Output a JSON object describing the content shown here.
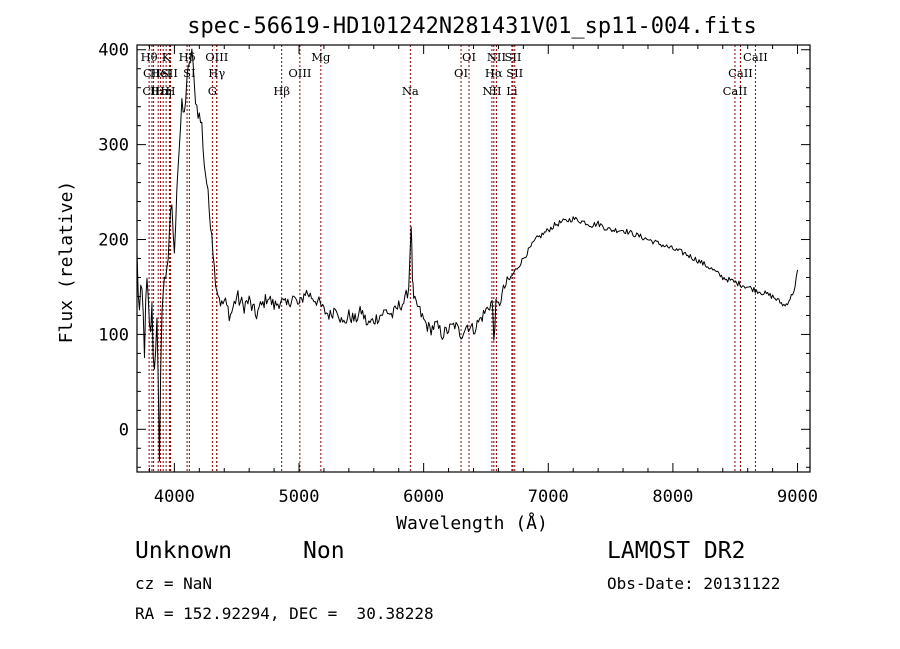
{
  "chart_data": {
    "type": "line",
    "title": "spec-56619-HD101242N281431V01_sp11-004.fits",
    "xlabel": "Wavelength (Å)",
    "ylabel": "Flux (relative)",
    "xlim": [
      3700,
      9100
    ],
    "ylim": [
      -45,
      405
    ],
    "xticks": [
      4000,
      5000,
      6000,
      7000,
      8000,
      9000
    ],
    "yticks": [
      0,
      100,
      200,
      300,
      400
    ],
    "grid": false,
    "series": [
      {
        "name": "",
        "x": [
          3700,
          3720,
          3740,
          3760,
          3780,
          3800,
          3820,
          3840,
          3860,
          3880,
          3900,
          3920,
          3940,
          3960,
          3980,
          4000,
          4020,
          4040,
          4060,
          4080,
          4100,
          4120,
          4140,
          4160,
          4180,
          4200,
          4220,
          4240,
          4260,
          4280,
          4300,
          4320,
          4340,
          4360,
          4380,
          4400,
          4450,
          4500,
          4550,
          4600,
          4650,
          4700,
          4750,
          4800,
          4850,
          4900,
          4950,
          5000,
          5050,
          5100,
          5150,
          5200,
          5250,
          5300,
          5350,
          5400,
          5450,
          5500,
          5550,
          5600,
          5650,
          5700,
          5750,
          5800,
          5850,
          5880,
          5900,
          5910,
          5920,
          5950,
          6000,
          6050,
          6100,
          6150,
          6200,
          6250,
          6300,
          6350,
          6400,
          6450,
          6500,
          6550,
          6563,
          6580,
          6600,
          6650,
          6700,
          6750,
          6800,
          6850,
          6900,
          6950,
          7000,
          7050,
          7100,
          7150,
          7200,
          7250,
          7300,
          7350,
          7400,
          7450,
          7500,
          7600,
          7700,
          7800,
          7900,
          8000,
          8100,
          8200,
          8300,
          8400,
          8500,
          8600,
          8700,
          8800,
          8850,
          8900,
          8950,
          8980,
          9000
        ],
        "y": [
          180,
          120,
          140,
          90,
          150,
          100,
          120,
          60,
          130,
          -50,
          140,
          150,
          180,
          190,
          240,
          180,
          260,
          300,
          340,
          330,
          370,
          380,
          400,
          360,
          340,
          330,
          320,
          280,
          260,
          230,
          210,
          170,
          150,
          140,
          130,
          135,
          120,
          140,
          130,
          135,
          120,
          130,
          140,
          130,
          135,
          130,
          140,
          130,
          145,
          140,
          135,
          125,
          120,
          130,
          110,
          120,
          115,
          125,
          110,
          115,
          120,
          125,
          120,
          130,
          135,
          150,
          218,
          160,
          135,
          130,
          115,
          105,
          110,
          100,
          105,
          110,
          100,
          110,
          105,
          115,
          125,
          135,
          95,
          130,
          130,
          150,
          160,
          170,
          180,
          190,
          200,
          205,
          210,
          215,
          218,
          220,
          222,
          220,
          218,
          215,
          217,
          213,
          210,
          210,
          205,
          200,
          195,
          190,
          185,
          178,
          170,
          160,
          155,
          150,
          145,
          140,
          135,
          130,
          140,
          150,
          168
        ]
      }
    ],
    "line_markers": [
      {
        "label": "Hθ",
        "x": 3797,
        "row": 1
      },
      {
        "label": "CII",
        "x": 3820,
        "row": 2
      },
      {
        "label": "CIII",
        "x": 3833,
        "row": 3
      },
      {
        "label": "Hε",
        "x": 3870,
        "row": 3
      },
      {
        "label": "HeI",
        "x": 3889,
        "row": 2
      },
      {
        "label": "Hη",
        "x": 3910,
        "row": 3
      },
      {
        "label": "K",
        "x": 3934,
        "row": 1
      },
      {
        "label": "SII",
        "x": 3960,
        "row": 2
      },
      {
        "label": "H",
        "x": 3969,
        "row": 3
      },
      {
        "label": "Hδ",
        "x": 4102,
        "row": 1
      },
      {
        "label": "SI",
        "x": 4120,
        "row": 2
      },
      {
        "label": "OIII",
        "x": 4340,
        "row": 1
      },
      {
        "label": "Hγ",
        "x": 4340,
        "row": 2
      },
      {
        "label": "G",
        "x": 4305,
        "row": 3
      },
      {
        "label": "Hβ",
        "x": 4861,
        "row": 3
      },
      {
        "label": "OIII",
        "x": 5007,
        "row": 2
      },
      {
        "label": "Mg",
        "x": 5175,
        "row": 1
      },
      {
        "label": "Na",
        "x": 5893,
        "row": 3
      },
      {
        "label": "OI",
        "x": 6300,
        "row": 2
      },
      {
        "label": "OI",
        "x": 6364,
        "row": 1
      },
      {
        "label": "NII",
        "x": 6548,
        "row": 3
      },
      {
        "label": "Hα",
        "x": 6563,
        "row": 2
      },
      {
        "label": "NII",
        "x": 6584,
        "row": 1
      },
      {
        "label": "SII",
        "x": 6717,
        "row": 1
      },
      {
        "label": "SII",
        "x": 6731,
        "row": 2
      },
      {
        "label": "Li",
        "x": 6708,
        "row": 3
      },
      {
        "label": "CaII",
        "x": 8498,
        "row": 3
      },
      {
        "label": "CaII",
        "x": 8542,
        "row": 2
      },
      {
        "label": "CaII",
        "x": 8662,
        "row": 1
      }
    ]
  },
  "info": {
    "class": "Unknown",
    "subclass": "Non",
    "survey": "LAMOST DR2",
    "cz": "cz = NaN",
    "obs_date": "Obs-Date: 20131122",
    "coords": "RA = 152.92294, DEC =  30.38228"
  },
  "colors": {
    "spectrum": "#000000",
    "line_markers": "#8b0000",
    "axes": "#000000"
  }
}
